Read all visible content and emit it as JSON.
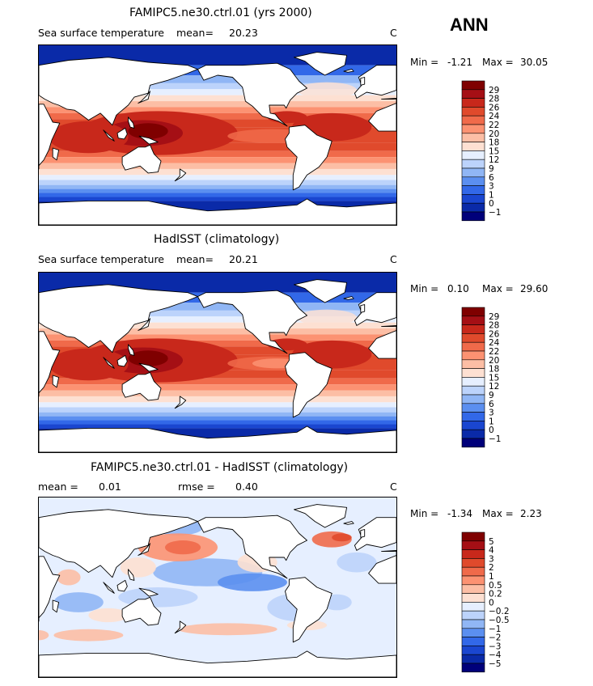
{
  "season": "ANN",
  "colors": {
    "land": "#ffffff",
    "coast": "#000000",
    "warm": [
      "#fde0d2",
      "#fcbea5",
      "#fc9272",
      "#f06a4a",
      "#e04a2c",
      "#c8281b",
      "#a50f15",
      "#7f0000"
    ],
    "cool": [
      "#e6efff",
      "#bcd3fb",
      "#90b6f5",
      "#5b8ff0",
      "#3268e8",
      "#1a46d0",
      "#0a2aa8",
      "#00007a"
    ]
  },
  "panels": [
    {
      "title": "FAMIPC5.ne30.ctrl.01 (yrs 2000)",
      "left_label": "Sea surface temperature",
      "stat1_label": "mean=",
      "stat1_value": "20.23",
      "stat2_label": "",
      "stat2_value": "",
      "units": "C",
      "min_label": "Min =",
      "min_value": "-1.21",
      "max_label": "Max =",
      "max_value": "30.05",
      "field": "model"
    },
    {
      "title": "HadISST (climatology)",
      "left_label": "Sea surface temperature",
      "stat1_label": "mean=",
      "stat1_value": "20.21",
      "stat2_label": "",
      "stat2_value": "",
      "units": "C",
      "min_label": "Min =",
      "min_value": "0.10",
      "max_label": "Max =",
      "max_value": "29.60",
      "field": "obs"
    },
    {
      "title": "FAMIPC5.ne30.ctrl.01 - HadISST (climatology)",
      "left_label": "",
      "stat1_label": "mean =",
      "stat1_value": "0.01",
      "stat2_label": "rmse =",
      "stat2_value": "0.40",
      "units": "C",
      "min_label": "Min =",
      "min_value": "-1.34",
      "max_label": "Max =",
      "max_value": "2.23",
      "field": "diff"
    }
  ],
  "chart_data": [
    {
      "type": "heatmap",
      "title": "FAMIPC5.ne30.ctrl.01 (yrs 2000)",
      "subtitle": "Sea surface temperature",
      "mean": 20.23,
      "units": "C",
      "min": -1.21,
      "max": 30.05,
      "x_range": [
        30,
        390
      ],
      "y_range": [
        -90,
        90
      ],
      "colorbar_levels": [
        "29",
        "28",
        "26",
        "24",
        "22",
        "20",
        "18",
        "15",
        "12",
        "9",
        "6",
        "3",
        "1",
        "0",
        "−1"
      ],
      "colorbar_colors": [
        "#7f0000",
        "#a50f15",
        "#c8281b",
        "#e04a2c",
        "#f06a4a",
        "#fc9272",
        "#fcbea5",
        "#fde0d2",
        "#e6efff",
        "#bcd3fb",
        "#90b6f5",
        "#5b8ff0",
        "#3268e8",
        "#1a46d0",
        "#0a2aa8",
        "#00007a"
      ]
    },
    {
      "type": "heatmap",
      "title": "HadISST (climatology)",
      "subtitle": "Sea surface temperature",
      "mean": 20.21,
      "units": "C",
      "min": 0.1,
      "max": 29.6,
      "x_range": [
        30,
        390
      ],
      "y_range": [
        -90,
        90
      ],
      "colorbar_levels": [
        "29",
        "28",
        "26",
        "24",
        "22",
        "20",
        "18",
        "15",
        "12",
        "9",
        "6",
        "3",
        "1",
        "0",
        "−1"
      ],
      "colorbar_colors": [
        "#7f0000",
        "#a50f15",
        "#c8281b",
        "#e04a2c",
        "#f06a4a",
        "#fc9272",
        "#fcbea5",
        "#fde0d2",
        "#e6efff",
        "#bcd3fb",
        "#90b6f5",
        "#5b8ff0",
        "#3268e8",
        "#1a46d0",
        "#0a2aa8",
        "#00007a"
      ]
    },
    {
      "type": "heatmap",
      "title": "FAMIPC5.ne30.ctrl.01 - HadISST (climatology)",
      "mean": 0.01,
      "rmse": 0.4,
      "units": "C",
      "min": -1.34,
      "max": 2.23,
      "x_range": [
        30,
        390
      ],
      "y_range": [
        -90,
        90
      ],
      "colorbar_levels": [
        "5",
        "4",
        "3",
        "2",
        "1",
        "0.5",
        "0.2",
        "0",
        "−0.2",
        "−0.5",
        "−1",
        "−2",
        "−3",
        "−4",
        "−5"
      ],
      "colorbar_colors": [
        "#7f0000",
        "#a50f15",
        "#c8281b",
        "#e04a2c",
        "#f06a4a",
        "#fc9272",
        "#fcbea5",
        "#fde0d2",
        "#e6efff",
        "#bcd3fb",
        "#90b6f5",
        "#5b8ff0",
        "#3268e8",
        "#1a46d0",
        "#0a2aa8",
        "#00007a"
      ]
    }
  ]
}
